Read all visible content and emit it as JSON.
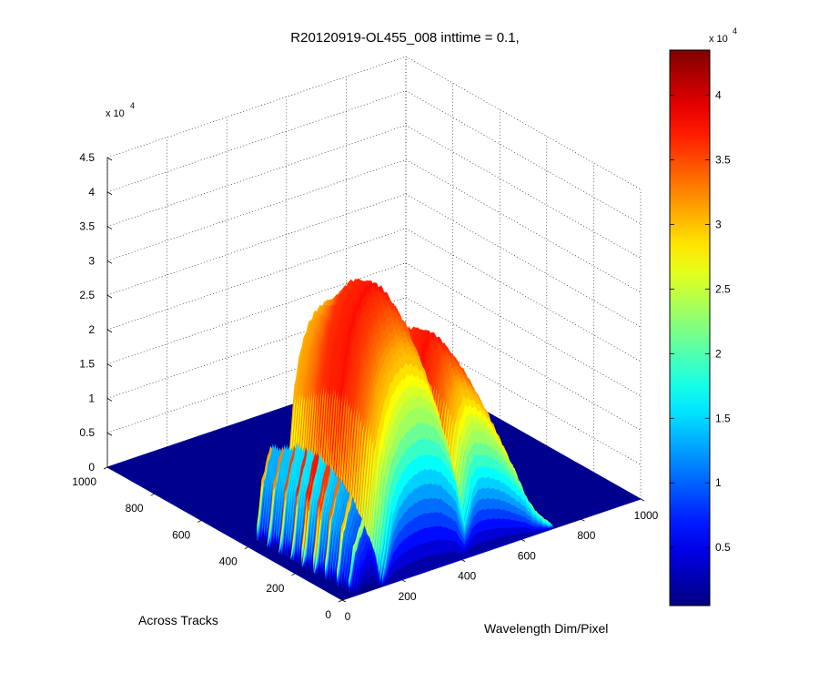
{
  "chart_data": {
    "type": "surface",
    "title": "R20120919-OL455_008 inttime = 0.1,",
    "xlabel": "Wavelength Dim/Pixel",
    "ylabel": "Across Tracks",
    "zlabel": "",
    "xlim": [
      0,
      1000
    ],
    "ylim": [
      0,
      1000
    ],
    "zlim": [
      0,
      45000
    ],
    "xticks": [
      "0",
      "200",
      "400",
      "600",
      "800",
      "1000"
    ],
    "yticks": [
      "0",
      "200",
      "400",
      "600",
      "800",
      "1000"
    ],
    "zticks": [
      "0",
      "0.5",
      "1",
      "1.5",
      "2",
      "2.5",
      "3",
      "3.5",
      "4",
      "4.5"
    ],
    "z_multiplier": "x 10",
    "z_multiplier_exp": "4",
    "grid": true,
    "colormap": "jet",
    "colorbar": {
      "position": "right",
      "range": [
        500,
        43500
      ],
      "ticks": [
        "0.5",
        "1",
        "1.5",
        "2",
        "2.5",
        "3",
        "3.5",
        "4"
      ],
      "multiplier": "x 10",
      "multiplier_exp": "4"
    },
    "across_track_extent": [
      0,
      420
    ],
    "spectral_profile": {
      "x": [
        0,
        40,
        60,
        90,
        110,
        130,
        150,
        170,
        190,
        215,
        240,
        270,
        300,
        330,
        360,
        380,
        400,
        410,
        420,
        440,
        460,
        490,
        520,
        550,
        580,
        610,
        640,
        680,
        720,
        1000
      ],
      "z": [
        0,
        0,
        10000,
        16000,
        12000,
        0,
        12000,
        25000,
        31000,
        35000,
        37000,
        38000,
        37000,
        35000,
        30000,
        26000,
        16000,
        12000,
        16000,
        25000,
        28000,
        27000,
        25000,
        22000,
        18000,
        14000,
        8000,
        3000,
        0,
        0
      ]
    },
    "across_track_profile": {
      "y": [
        0,
        30,
        80,
        150,
        220,
        300,
        360,
        420
      ],
      "scale": [
        0.45,
        0.62,
        0.8,
        0.93,
        1.0,
        0.97,
        0.88,
        0.82
      ]
    }
  }
}
